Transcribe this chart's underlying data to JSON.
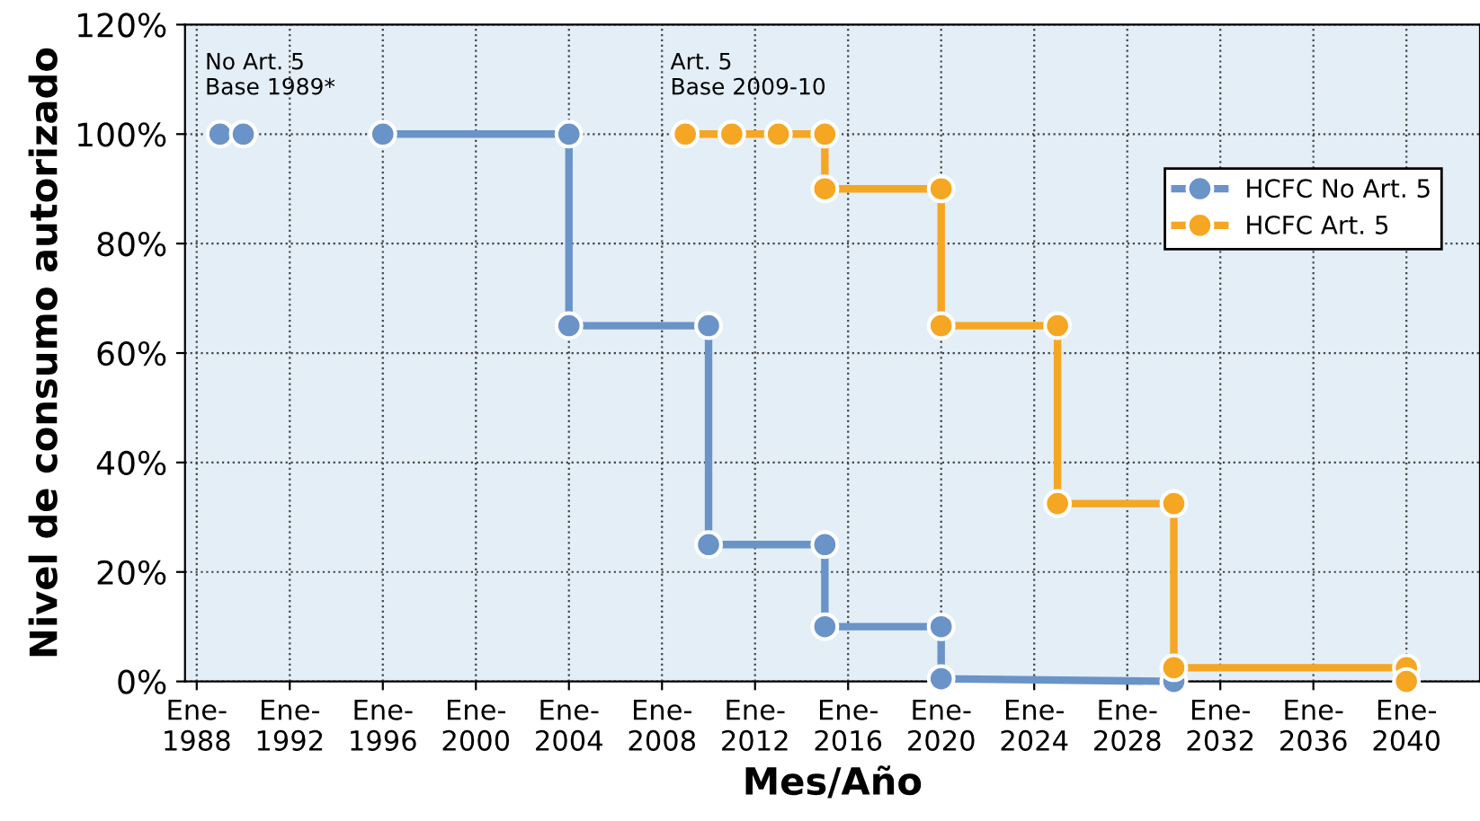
{
  "chart_data": {
    "type": "line",
    "xlabel": "Mes/Año",
    "ylabel": "Nivel de consumo autorizado",
    "xlim": [
      "1987-07",
      "2043-03"
    ],
    "ylim": [
      0,
      120
    ],
    "xticks": [
      {
        "value": "1988-01",
        "label": "Ene-\n1988"
      },
      {
        "value": "1992-01",
        "label": "Ene-\n1992"
      },
      {
        "value": "1996-01",
        "label": "Ene-\n1996"
      },
      {
        "value": "2000-01",
        "label": "Ene-\n2000"
      },
      {
        "value": "2004-01",
        "label": "Ene-\n2004"
      },
      {
        "value": "2008-01",
        "label": "Ene-\n2008"
      },
      {
        "value": "2012-01",
        "label": "Ene-\n2012"
      },
      {
        "value": "2016-01",
        "label": "Ene-\n2016"
      },
      {
        "value": "2020-01",
        "label": "Ene-\n2020"
      },
      {
        "value": "2024-01",
        "label": "Ene-\n2024"
      },
      {
        "value": "2028-01",
        "label": "Ene-\n2028"
      },
      {
        "value": "2032-01",
        "label": "Ene-\n2032"
      },
      {
        "value": "2036-01",
        "label": "Ene-\n2036"
      },
      {
        "value": "2040-01",
        "label": "Ene-\n2040"
      }
    ],
    "yticks": [
      {
        "value": 0,
        "label": "0%"
      },
      {
        "value": 20,
        "label": "20%"
      },
      {
        "value": 40,
        "label": "40%"
      },
      {
        "value": 60,
        "label": "60%"
      },
      {
        "value": 80,
        "label": "80%"
      },
      {
        "value": 100,
        "label": "100%"
      },
      {
        "value": 120,
        "label": "120%"
      }
    ],
    "grid": true,
    "legend": "top right",
    "marker": "circle",
    "line_style": "solid",
    "annotations": [
      {
        "text": "No Art. 5\nBase 1989*",
        "x": "1989-01",
        "y": 100
      },
      {
        "text": "Art. 5\nBase 2009-10",
        "x": "2009-01",
        "y": 100
      }
    ],
    "series": [
      {
        "name": "HCFC No Art. 5",
        "color": "#6a93c8",
        "x": [
          "1989-01",
          "1990-01",
          null,
          "1996-01",
          "2004-01",
          "2004-01",
          "2010-01",
          "2010-01",
          "2015-01",
          "2015-01",
          "2020-01",
          "2020-01",
          "2030-01"
        ],
        "values": [
          100,
          100,
          null,
          100,
          100,
          65,
          65,
          25,
          25,
          10,
          10,
          0.5,
          0
        ]
      },
      {
        "name": "HCFC Art. 5",
        "color": "#f5a623",
        "x": [
          "2009-01",
          "2011-01",
          "2013-01",
          "2015-01",
          "2015-01",
          "2020-01",
          "2020-01",
          "2025-01",
          "2025-01",
          "2030-01",
          "2030-01",
          "2040-01",
          "2040-01"
        ],
        "values": [
          100,
          100,
          100,
          100,
          90,
          90,
          65,
          65,
          32.5,
          32.5,
          2.5,
          2.5,
          0
        ]
      }
    ]
  }
}
